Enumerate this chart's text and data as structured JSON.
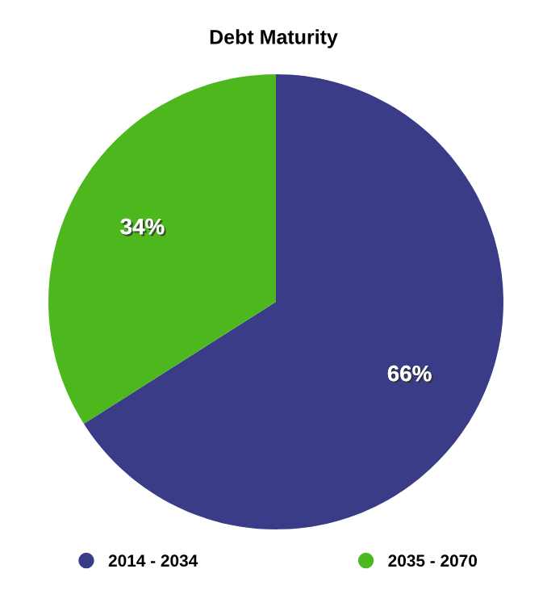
{
  "chart_data": {
    "type": "pie",
    "title": "Debt Maturity",
    "categories": [
      "2014 - 2034",
      "2035 - 2070"
    ],
    "values": [
      66,
      34
    ],
    "colors": [
      "#3b3c88",
      "#4db81e"
    ],
    "value_labels": [
      "66%",
      "34%"
    ],
    "legend": "bottom"
  }
}
